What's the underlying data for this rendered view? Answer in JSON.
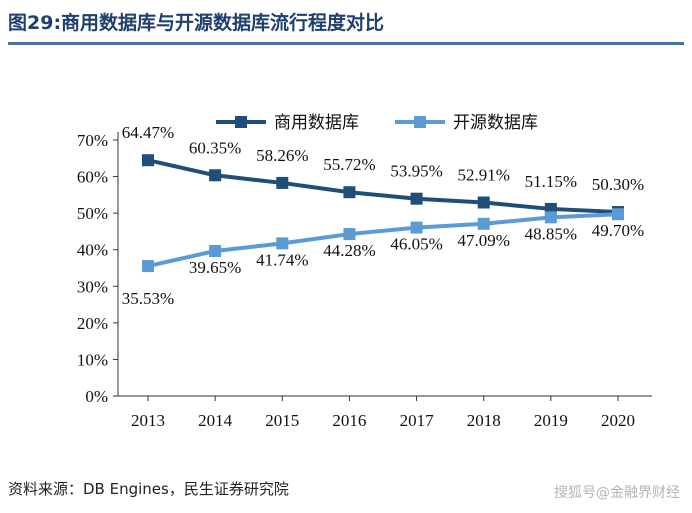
{
  "title": "图29:商用数据库与开源数据库流行程度对比",
  "source": "资料来源：DB Engines，民生证券研究院",
  "watermark": "搜狐号@金融界财经",
  "chart_data": {
    "type": "line",
    "categories": [
      "2013",
      "2014",
      "2015",
      "2016",
      "2017",
      "2018",
      "2019",
      "2020"
    ],
    "series": [
      {
        "name": "商用数据库",
        "values": [
          64.47,
          60.35,
          58.26,
          55.72,
          53.95,
          52.91,
          51.15,
          50.3
        ],
        "labels": [
          "64.47%",
          "60.35%",
          "58.26%",
          "55.72%",
          "53.95%",
          "52.91%",
          "51.15%",
          "50.30%"
        ],
        "color": "#1f4e79"
      },
      {
        "name": "开源数据库",
        "values": [
          35.53,
          39.65,
          41.74,
          44.28,
          46.05,
          47.09,
          48.85,
          49.7
        ],
        "labels": [
          "35.53%",
          "39.65%",
          "41.74%",
          "44.28%",
          "46.05%",
          "47.09%",
          "48.85%",
          "49.70%"
        ],
        "color": "#5b9bd5"
      }
    ],
    "yticks": [
      "0%",
      "10%",
      "20%",
      "30%",
      "40%",
      "50%",
      "60%",
      "70%"
    ],
    "ylim": [
      0,
      70
    ],
    "legend_position": "top-right",
    "grid": false
  }
}
